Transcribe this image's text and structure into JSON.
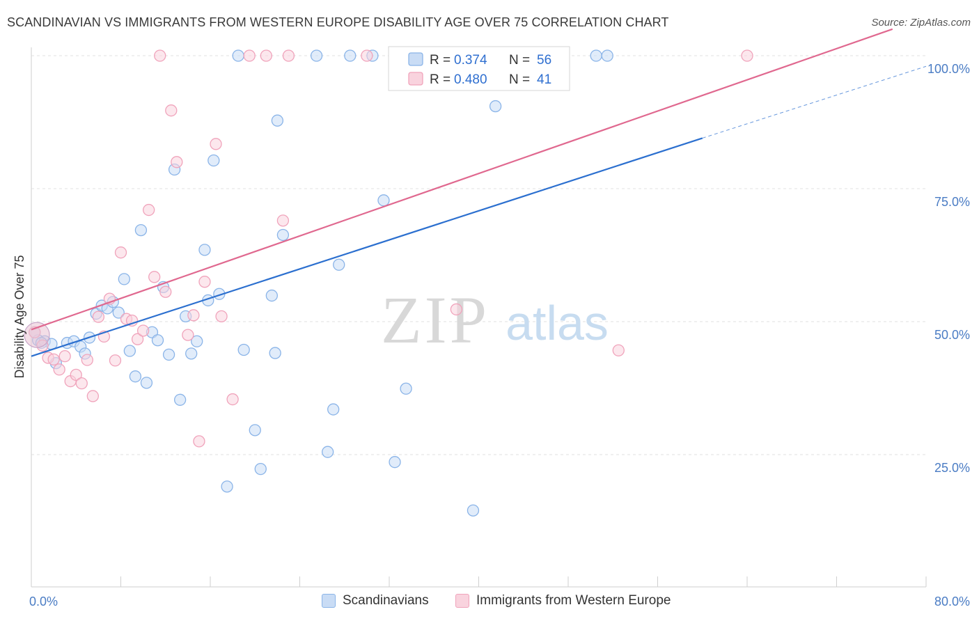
{
  "title": "SCANDINAVIAN VS IMMIGRANTS FROM WESTERN EUROPE DISABILITY AGE OVER 75 CORRELATION CHART",
  "source": "Source: ZipAtlas.com",
  "watermark": {
    "zip": "ZIP",
    "atlas": "atlas"
  },
  "chart_data": {
    "type": "scatter",
    "title": "SCANDINAVIAN VS IMMIGRANTS FROM WESTERN EUROPE DISABILITY AGE OVER 75 CORRELATION CHART",
    "xlabel": "",
    "ylabel": "Disability Age Over 75",
    "xlim": [
      0,
      80
    ],
    "ylim": [
      0,
      105
    ],
    "x_tick_labels": [
      "0.0%",
      "80.0%"
    ],
    "y_tick_labels": [
      "25.0%",
      "50.0%",
      "75.0%",
      "100.0%"
    ],
    "y_ticks": [
      25,
      50,
      75,
      100
    ],
    "grid": true,
    "legend_position": "bottom",
    "stats_box": [
      {
        "r_label": "R =",
        "r_value": "0.374",
        "n_label": "N =",
        "n_value": "56"
      },
      {
        "r_label": "R =",
        "r_value": "0.480",
        "n_label": "N =",
        "n_value": "41"
      }
    ],
    "series": [
      {
        "name": "Scandinavians",
        "color": "#8ab4e8",
        "fill": "#c9dcf5",
        "line_color": "#2b6fcf",
        "trend": {
          "x0": 0,
          "y0": 43.5,
          "x1": 60,
          "y1": 84.5,
          "dash_to_x": 80,
          "dash_to_y": 98
        },
        "points": [
          [
            0.6,
            46.5
          ],
          [
            1.2,
            46.3
          ],
          [
            1.8,
            45.8
          ],
          [
            2.2,
            42.2
          ],
          [
            3.2,
            46.0
          ],
          [
            3.8,
            46.3
          ],
          [
            4.4,
            45.3
          ],
          [
            4.8,
            44.0
          ],
          [
            5.2,
            47.0
          ],
          [
            5.8,
            51.5
          ],
          [
            6.3,
            53.0
          ],
          [
            6.8,
            52.5
          ],
          [
            7.3,
            53.7
          ],
          [
            7.8,
            51.7
          ],
          [
            8.3,
            58.0
          ],
          [
            8.8,
            44.5
          ],
          [
            9.3,
            39.7
          ],
          [
            9.8,
            67.2
          ],
          [
            10.3,
            38.5
          ],
          [
            10.8,
            48.0
          ],
          [
            11.3,
            46.5
          ],
          [
            11.8,
            56.5
          ],
          [
            12.3,
            43.8
          ],
          [
            12.8,
            78.6
          ],
          [
            13.3,
            35.3
          ],
          [
            13.8,
            51.0
          ],
          [
            14.3,
            44.0
          ],
          [
            14.8,
            46.3
          ],
          [
            15.5,
            63.5
          ],
          [
            15.8,
            54.0
          ],
          [
            16.3,
            80.3
          ],
          [
            16.8,
            55.2
          ],
          [
            17.5,
            19.0
          ],
          [
            18.5,
            100.0
          ],
          [
            19.0,
            44.7
          ],
          [
            20.0,
            29.6
          ],
          [
            20.5,
            22.3
          ],
          [
            21.5,
            54.9
          ],
          [
            21.8,
            44.1
          ],
          [
            22.0,
            87.8
          ],
          [
            22.5,
            66.3
          ],
          [
            25.5,
            100.0
          ],
          [
            26.5,
            25.5
          ],
          [
            27.0,
            33.5
          ],
          [
            27.5,
            60.7
          ],
          [
            28.5,
            100.0
          ],
          [
            30.5,
            100.0
          ],
          [
            31.5,
            72.8
          ],
          [
            32.5,
            23.6
          ],
          [
            33.5,
            37.4
          ],
          [
            39.5,
            14.5
          ],
          [
            41.5,
            90.5
          ],
          [
            50.5,
            100.0
          ],
          [
            51.5,
            100.0
          ],
          [
            0.3,
            48.0
          ],
          [
            0.9,
            46.0
          ]
        ]
      },
      {
        "name": "Immigrants from Western Europe",
        "color": "#f0a3bb",
        "fill": "#f9d3de",
        "line_color": "#e0688f",
        "trend": {
          "x0": 0,
          "y0": 48.5,
          "x1": 77,
          "y1": 105,
          "dash_to_x": 77,
          "dash_to_y": 105
        },
        "points": [
          [
            0.3,
            48.0
          ],
          [
            1.0,
            45.5
          ],
          [
            1.5,
            43.2
          ],
          [
            2.0,
            42.9
          ],
          [
            2.5,
            41.0
          ],
          [
            3.0,
            43.5
          ],
          [
            3.5,
            38.8
          ],
          [
            4.0,
            40.0
          ],
          [
            4.5,
            38.4
          ],
          [
            5.0,
            42.8
          ],
          [
            5.5,
            36.0
          ],
          [
            6.0,
            50.9
          ],
          [
            6.5,
            47.2
          ],
          [
            7.0,
            54.3
          ],
          [
            7.5,
            42.7
          ],
          [
            8.0,
            63.0
          ],
          [
            8.5,
            50.5
          ],
          [
            9.0,
            50.2
          ],
          [
            9.5,
            46.7
          ],
          [
            10.0,
            48.3
          ],
          [
            10.5,
            71.0
          ],
          [
            11.0,
            58.4
          ],
          [
            11.5,
            100.0
          ],
          [
            12.0,
            55.6
          ],
          [
            12.5,
            89.7
          ],
          [
            13.0,
            80.0
          ],
          [
            14.0,
            47.5
          ],
          [
            14.5,
            51.2
          ],
          [
            15.0,
            27.5
          ],
          [
            15.5,
            57.5
          ],
          [
            16.5,
            83.4
          ],
          [
            17.0,
            51.0
          ],
          [
            18.0,
            35.4
          ],
          [
            19.5,
            100.0
          ],
          [
            21.0,
            100.0
          ],
          [
            22.5,
            69.0
          ],
          [
            23.0,
            100.0
          ],
          [
            30.0,
            100.0
          ],
          [
            38.0,
            52.3
          ],
          [
            52.5,
            44.6
          ],
          [
            64.0,
            100.0
          ]
        ]
      }
    ]
  }
}
